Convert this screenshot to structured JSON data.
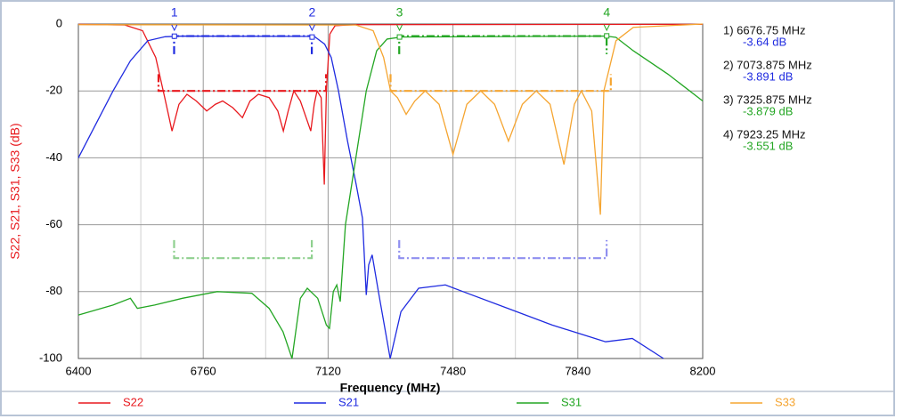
{
  "chart_data": {
    "type": "line",
    "x_label": "Frequency (MHz)",
    "y_label": "S22, S21, S31, S33 (dB)",
    "xlim": [
      6400,
      8200
    ],
    "xticks": [
      6400,
      6760,
      7120,
      7480,
      7840,
      8200
    ],
    "x_minor_grid": [
      6580,
      6940,
      7300,
      7660,
      8020
    ],
    "ylim": [
      -100,
      0
    ],
    "yticks": [
      0,
      -20,
      -40,
      -60,
      -80,
      -100
    ],
    "grid": true,
    "legend": "bottom",
    "series": [
      {
        "name": "S22",
        "color": "#e8191e",
        "x": [
          6400,
          6534,
          6585,
          6623,
          6649,
          6670,
          6690,
          6713,
          6740,
          6770,
          6795,
          6816,
          6845,
          6873,
          6895,
          6919,
          6950,
          6975,
          6991,
          7005,
          7021,
          7040,
          7070,
          7080,
          7088,
          7100,
          7109,
          7115,
          7125,
          7140,
          7200,
          8200
        ],
        "values": [
          -0.1,
          -0.3,
          -2,
          -10,
          -22,
          -32,
          -24,
          -21,
          -23,
          -26,
          -24,
          -23,
          -25,
          -28,
          -23,
          -21,
          -22,
          -26,
          -32,
          -26,
          -20,
          -23,
          -32,
          -24,
          -20,
          -22,
          -48,
          -20,
          -3,
          -0.5,
          -0.2,
          -0.1
        ]
      },
      {
        "name": "S21",
        "color": "#1f2be0",
        "x": [
          6400,
          6450,
          6500,
          6550,
          6600,
          6650,
          6700,
          7080,
          7110,
          7129,
          7150,
          7176,
          7201,
          7219,
          7230,
          7237,
          7247,
          7265,
          7299,
          7330,
          7381,
          7458,
          7509,
          7638,
          7766,
          7920,
          7997,
          8087
        ],
        "values": [
          -40,
          -30,
          -20,
          -11,
          -5,
          -3.8,
          -3.6,
          -3.7,
          -6,
          -10,
          -20,
          -35,
          -48,
          -58,
          -81,
          -72,
          -69,
          -80,
          -100,
          -86,
          -79,
          -78,
          -80,
          -85,
          -90,
          -95,
          -94,
          -100
        ]
      },
      {
        "name": "S31",
        "color": "#23a623",
        "x": [
          6400,
          6500,
          6550,
          6570,
          6620,
          6700,
          6800,
          6900,
          6950,
          6990,
          7016,
          7040,
          7060,
          7090,
          7115,
          7124,
          7135,
          7145,
          7155,
          7170,
          7200,
          7230,
          7260,
          7290,
          7330,
          7920,
          7950,
          8000,
          8100,
          8200
        ],
        "values": [
          -87,
          -84,
          -82,
          -85,
          -84,
          -82,
          -80,
          -80.5,
          -85,
          -92,
          -100,
          -82,
          -79,
          -82,
          -90,
          -91,
          -80,
          -78,
          -83,
          -60,
          -40,
          -20,
          -8,
          -4.5,
          -3.9,
          -3.6,
          -4,
          -8,
          -15,
          -23
        ]
      },
      {
        "name": "S33",
        "color": "#f5a531",
        "x": [
          6400,
          7200,
          7250,
          7280,
          7300,
          7320,
          7345,
          7370,
          7400,
          7440,
          7480,
          7520,
          7560,
          7600,
          7640,
          7680,
          7720,
          7760,
          7800,
          7830,
          7850,
          7880,
          7905,
          7915,
          7950,
          8000,
          8200
        ],
        "values": [
          -0.2,
          -0.3,
          -2,
          -10,
          -20,
          -22,
          -27,
          -23,
          -20,
          -24,
          -39,
          -24,
          -20,
          -24,
          -35,
          -24,
          -20,
          -24,
          -42,
          -24,
          -20,
          -26,
          -57,
          -20,
          -5,
          -1,
          0
        ]
      }
    ],
    "limit_lines": [
      {
        "color": "#e8191e",
        "x": [
          6631,
          6631,
          7114,
          7114
        ],
        "values": [
          -15,
          -20,
          -20,
          -15
        ]
      },
      {
        "color": "#1f2be0",
        "x": [
          6676,
          6676,
          7073,
          7073
        ],
        "values": [
          -9,
          -3.6,
          -3.6,
          -9
        ]
      },
      {
        "color": "#23a623",
        "x": [
          7325,
          7325,
          7923,
          7923
        ],
        "values": [
          -9,
          -3.6,
          -3.6,
          -9
        ]
      },
      {
        "color": "#f5a531",
        "x": [
          7300,
          7300,
          7935,
          7935
        ],
        "values": [
          -15,
          -20,
          -20,
          -15
        ]
      },
      {
        "color": "#8fd08f",
        "x": [
          6676,
          6676,
          7073,
          7073
        ],
        "values": [
          -64.6,
          -70,
          -70,
          -64.6
        ]
      },
      {
        "color": "#8f8ff0",
        "x": [
          7325,
          7325,
          7923,
          7923
        ],
        "values": [
          -64.6,
          -70,
          -70,
          -64.6
        ]
      }
    ],
    "markers": [
      {
        "label": "1",
        "x": 6676.75,
        "value": -3.64,
        "color": "#1f2be0",
        "freq_label": "1) 6676.75 MHz",
        "value_label": "-3.64 dB"
      },
      {
        "label": "2",
        "x": 7073.875,
        "value": -3.891,
        "color": "#1f2be0",
        "freq_label": "2) 7073.875 MHz",
        "value_label": "-3.891 dB"
      },
      {
        "label": "3",
        "x": 7325.875,
        "value": -3.879,
        "color": "#23a623",
        "freq_label": "3) 7325.875 MHz",
        "value_label": "-3.879 dB"
      },
      {
        "label": "4",
        "x": 7923.25,
        "value": -3.551,
        "color": "#23a623",
        "freq_label": "4) 7923.25 MHz",
        "value_label": "-3.551 dB"
      }
    ]
  }
}
